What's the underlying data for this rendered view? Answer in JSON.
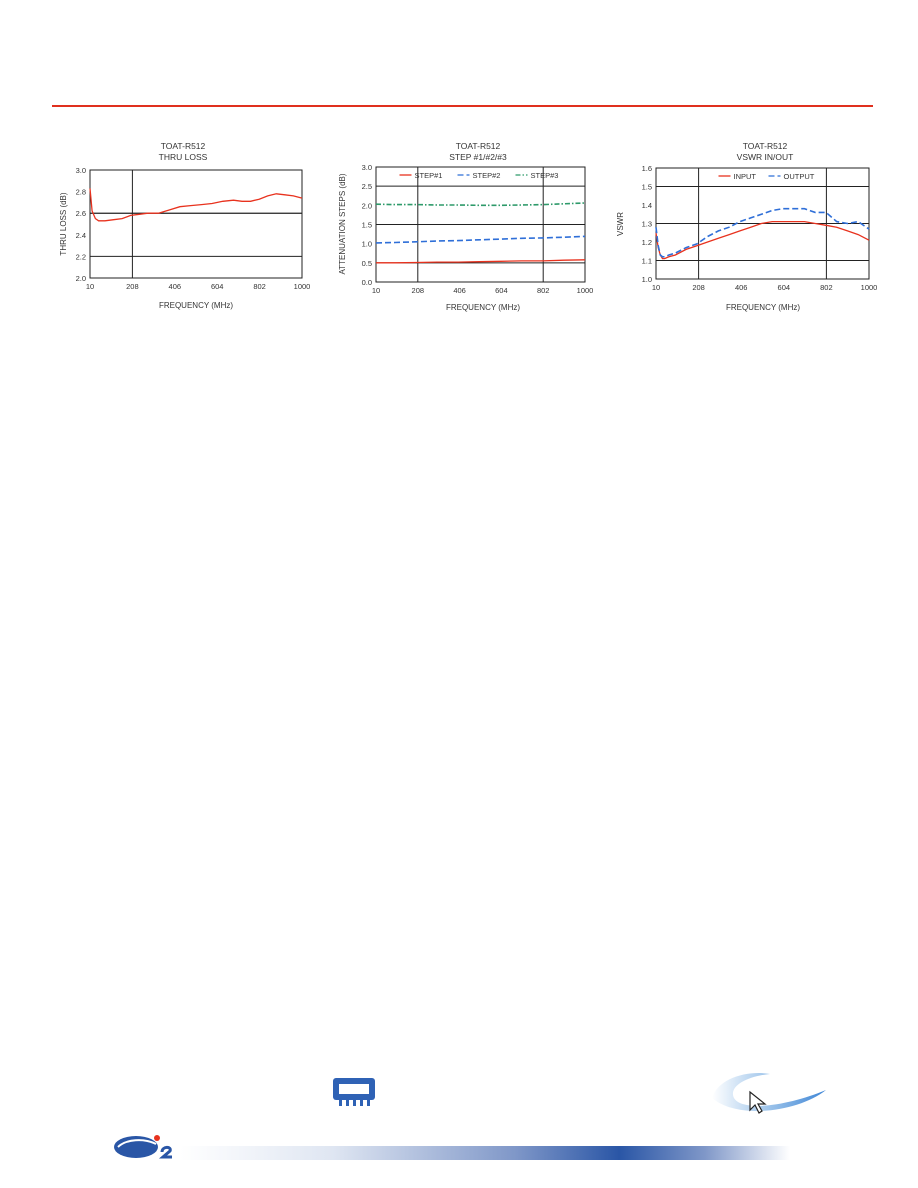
{
  "chart_data": [
    {
      "type": "line",
      "title": "TOAT-R512",
      "subtitle": "THRU LOSS",
      "xlabel": "FREQUENCY (MHz)",
      "ylabel": "THRU LOSS (dB)",
      "x_ticks": [
        "10",
        "208",
        "406",
        "604",
        "802",
        "1000"
      ],
      "y_ticks": [
        "2.0",
        "2.2",
        "2.4",
        "2.6",
        "2.8",
        "3.0"
      ],
      "xlim": [
        10,
        1000
      ],
      "ylim": [
        2.0,
        3.0
      ],
      "legend": "none",
      "series": [
        {
          "color": "#e8321e",
          "dash": "solid",
          "x": [
            10,
            20,
            35,
            50,
            80,
            120,
            160,
            200,
            240,
            280,
            330,
            380,
            430,
            480,
            530,
            580,
            630,
            680,
            720,
            760,
            800,
            840,
            880,
            920,
            960,
            1000
          ],
          "y": [
            2.83,
            2.62,
            2.55,
            2.53,
            2.53,
            2.54,
            2.55,
            2.58,
            2.59,
            2.6,
            2.6,
            2.63,
            2.66,
            2.67,
            2.68,
            2.69,
            2.71,
            2.72,
            2.71,
            2.71,
            2.73,
            2.76,
            2.78,
            2.77,
            2.76,
            2.74
          ]
        }
      ]
    },
    {
      "type": "line",
      "title": "TOAT-R512",
      "subtitle": "STEP #1/#2/#3",
      "xlabel": "FREQUENCY (MHz)",
      "ylabel": "ATTENUATION STEPS (dB)",
      "x_ticks": [
        "10",
        "208",
        "406",
        "604",
        "802",
        "1000"
      ],
      "y_ticks": [
        "0.0",
        "0.5",
        "1.0",
        "1.5",
        "2.0",
        "2.5",
        "3.0"
      ],
      "xlim": [
        10,
        1000
      ],
      "ylim": [
        0.0,
        3.0
      ],
      "legend": "top",
      "series": [
        {
          "name": "STEP#1",
          "color": "#e8321e",
          "dash": "solid",
          "x": [
            10,
            100,
            200,
            300,
            400,
            500,
            600,
            700,
            800,
            900,
            1000
          ],
          "y": [
            0.5,
            0.5,
            0.51,
            0.52,
            0.52,
            0.53,
            0.54,
            0.55,
            0.55,
            0.57,
            0.58
          ]
        },
        {
          "name": "STEP#2",
          "color": "#2f6fd8",
          "dash": "dashed",
          "x": [
            10,
            100,
            200,
            300,
            400,
            500,
            600,
            700,
            800,
            900,
            1000
          ],
          "y": [
            1.02,
            1.03,
            1.05,
            1.07,
            1.08,
            1.1,
            1.12,
            1.14,
            1.15,
            1.17,
            1.19
          ]
        },
        {
          "name": "STEP#3",
          "color": "#2e9a6a",
          "dash": "dashdot",
          "x": [
            10,
            100,
            200,
            300,
            400,
            500,
            600,
            700,
            800,
            900,
            1000
          ],
          "y": [
            2.03,
            2.02,
            2.02,
            2.01,
            2.01,
            2.0,
            2.0,
            2.01,
            2.02,
            2.04,
            2.06
          ]
        }
      ]
    },
    {
      "type": "line",
      "title": "TOAT-R512",
      "subtitle": "VSWR IN/OUT",
      "xlabel": "FREQUENCY (MHz)",
      "ylabel": "VSWR",
      "x_ticks": [
        "10",
        "208",
        "406",
        "604",
        "802",
        "1000"
      ],
      "y_ticks": [
        "1.0",
        "1.1",
        "1.2",
        "1.3",
        "1.4",
        "1.5",
        "1.6"
      ],
      "xlim": [
        10,
        1000
      ],
      "ylim": [
        1.0,
        1.6
      ],
      "legend": "top",
      "series": [
        {
          "name": "INPUT",
          "color": "#e8321e",
          "dash": "solid",
          "x": [
            10,
            20,
            30,
            40,
            50,
            70,
            100,
            150,
            200,
            250,
            300,
            350,
            400,
            450,
            500,
            550,
            600,
            650,
            700,
            750,
            800,
            850,
            900,
            950,
            1000
          ],
          "y": [
            1.25,
            1.17,
            1.13,
            1.11,
            1.11,
            1.12,
            1.13,
            1.16,
            1.18,
            1.2,
            1.22,
            1.24,
            1.26,
            1.28,
            1.3,
            1.31,
            1.31,
            1.31,
            1.31,
            1.3,
            1.29,
            1.28,
            1.26,
            1.24,
            1.21
          ]
        },
        {
          "name": "OUTPUT",
          "color": "#2f6fd8",
          "dash": "dashed",
          "x": [
            10,
            20,
            30,
            40,
            50,
            70,
            100,
            150,
            200,
            250,
            300,
            350,
            400,
            450,
            500,
            550,
            600,
            650,
            700,
            750,
            800,
            850,
            900,
            950,
            1000
          ],
          "y": [
            1.28,
            1.18,
            1.13,
            1.12,
            1.12,
            1.13,
            1.14,
            1.17,
            1.19,
            1.23,
            1.26,
            1.28,
            1.31,
            1.33,
            1.35,
            1.37,
            1.38,
            1.38,
            1.38,
            1.36,
            1.36,
            1.31,
            1.3,
            1.31,
            1.27
          ]
        }
      ]
    }
  ]
}
